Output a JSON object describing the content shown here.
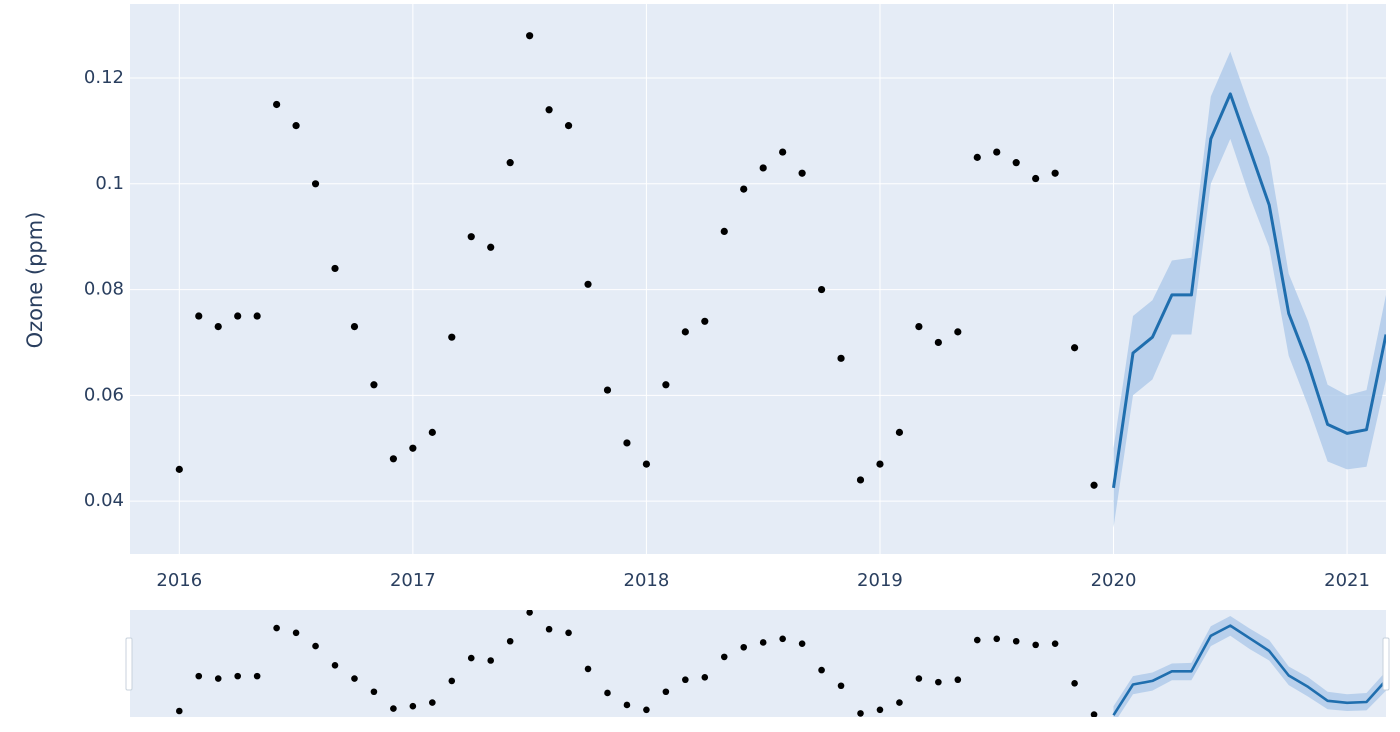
{
  "chart_data": {
    "type": "scatter",
    "title": "",
    "xlabel": "",
    "ylabel": "Ozone (ppm)",
    "x_tick_labels": [
      "2016",
      "2017",
      "2018",
      "2019",
      "2020",
      "2021"
    ],
    "y_tick_labels": [
      "0.04",
      "0.06",
      "0.08",
      "0.1",
      "0.12"
    ],
    "y_ticks": [
      0.04,
      0.06,
      0.08,
      0.1,
      0.12
    ],
    "ylim": [
      0.03,
      0.134
    ],
    "xlim": [
      "2015-10-15",
      "2021-03-01"
    ],
    "grid": true,
    "range_slider": true,
    "colors": {
      "plot_bg": "#e5ecf6",
      "grid": "#ffffff",
      "observed": "#000000",
      "forecast_line": "#1f6eae",
      "forecast_band": "#a9c7e8",
      "slider_border": "#c8d2dc"
    },
    "series": [
      {
        "kind": "observed_points",
        "x": [
          "2016-01",
          "2016-02",
          "2016-03",
          "2016-04",
          "2016-05",
          "2016-06",
          "2016-07",
          "2016-08",
          "2016-09",
          "2016-10",
          "2016-11",
          "2016-12",
          "2017-01",
          "2017-02",
          "2017-03",
          "2017-04",
          "2017-05",
          "2017-06",
          "2017-07",
          "2017-08",
          "2017-09",
          "2017-10",
          "2017-11",
          "2017-12",
          "2018-01",
          "2018-02",
          "2018-03",
          "2018-04",
          "2018-05",
          "2018-06",
          "2018-07",
          "2018-08",
          "2018-09",
          "2018-10",
          "2018-11",
          "2018-12",
          "2019-01",
          "2019-02",
          "2019-03",
          "2019-04",
          "2019-05",
          "2019-06",
          "2019-07",
          "2019-08",
          "2019-09",
          "2019-10",
          "2019-11",
          "2019-12"
        ],
        "y": [
          0.046,
          0.075,
          0.073,
          0.075,
          0.075,
          0.115,
          0.111,
          0.1,
          0.084,
          0.073,
          0.062,
          0.048,
          0.05,
          0.053,
          0.071,
          0.09,
          0.088,
          0.104,
          0.128,
          0.114,
          0.111,
          0.081,
          0.061,
          0.051,
          0.047,
          0.062,
          0.072,
          0.074,
          0.091,
          0.099,
          0.103,
          0.106,
          0.102,
          0.08,
          0.067,
          0.044,
          0.047,
          0.053,
          0.073,
          0.07,
          0.072,
          0.105,
          0.106,
          0.104,
          0.101,
          0.102,
          0.069,
          0.043
        ]
      },
      {
        "kind": "forecast_line",
        "x": [
          "2020-01",
          "2020-02",
          "2020-03",
          "2020-04",
          "2020-05",
          "2020-06",
          "2020-07",
          "2020-08",
          "2020-09",
          "2020-10",
          "2020-11",
          "2020-12",
          "2021-01",
          "2021-02",
          "2021-03"
        ],
        "y": [
          0.0425,
          0.068,
          0.071,
          0.079,
          0.079,
          0.1085,
          0.117,
          0.1065,
          0.096,
          0.0755,
          0.066,
          0.0545,
          0.0528,
          0.0535,
          0.0715
        ],
        "upper": [
          0.05,
          0.075,
          0.078,
          0.0855,
          0.086,
          0.1165,
          0.125,
          0.1145,
          0.105,
          0.083,
          0.074,
          0.062,
          0.06,
          0.061,
          0.079
        ],
        "lower": [
          0.035,
          0.06,
          0.063,
          0.0715,
          0.0715,
          0.1,
          0.1085,
          0.0975,
          0.088,
          0.0675,
          0.058,
          0.0475,
          0.046,
          0.0465,
          0.063
        ]
      }
    ]
  }
}
